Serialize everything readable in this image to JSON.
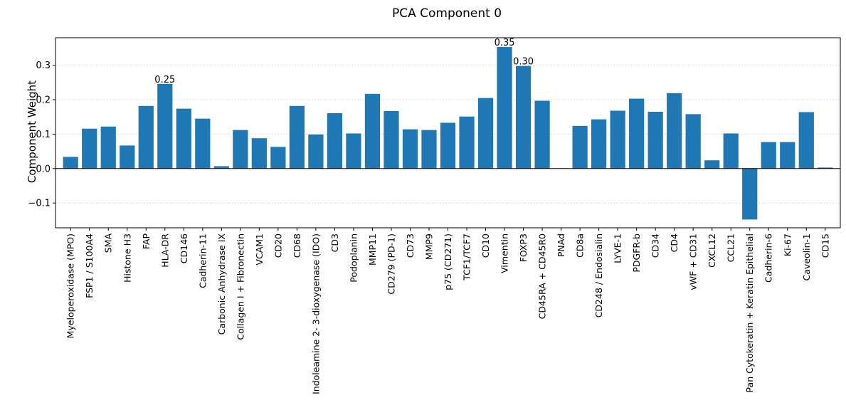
{
  "chart_data": {
    "type": "bar",
    "title": "PCA Component 0",
    "xlabel": "",
    "ylabel": "Component Weight",
    "ylim": [
      -0.172,
      0.38
    ],
    "yticks": [
      -0.1,
      0.0,
      0.1,
      0.2,
      0.3
    ],
    "ytick_labels": [
      "−0.1",
      "0.0",
      "0.1",
      "0.2",
      "0.3"
    ],
    "grid": "y-dotted",
    "bar_color": "#1f77b4",
    "categories": [
      "Myeloperoxidase (MPO)",
      "FSP1 / S100A4",
      "SMA",
      "Histone H3",
      "FAP",
      "HLA-DR",
      "CD146",
      "Cadherin-11",
      "Carbonic Anhydrase IX",
      "Collagen I + Fibronectin",
      "VCAM1",
      "CD20",
      "CD68",
      "Indoleamine 2- 3-dioxygenase (IDO)",
      "CD3",
      "Podoplanin",
      "MMP11",
      "CD279 (PD-1)",
      "CD73",
      "MMP9",
      "p75 (CD271)",
      "TCF1/TCF7",
      "CD10",
      "Vimentin",
      "FOXP3",
      "CD45RA + CD45R0",
      "PNAd",
      "CD8a",
      "CD248 / Endosialin",
      "LYVE-1",
      "PDGFR-b",
      "CD34",
      "CD4",
      "vWF + CD31",
      "CXCL12",
      "CCL21",
      "Pan Cytokeratin + Keratin Epithelial",
      "Cadherin-6",
      "Ki-67",
      "Caveolin-1",
      "CD15"
    ],
    "values": [
      0.034,
      0.116,
      0.122,
      0.067,
      0.182,
      0.246,
      0.174,
      0.145,
      0.007,
      0.112,
      0.088,
      0.063,
      0.182,
      0.099,
      0.161,
      0.102,
      0.217,
      0.167,
      0.114,
      0.112,
      0.133,
      0.151,
      0.205,
      0.353,
      0.298,
      0.197,
      0.0,
      0.124,
      0.143,
      0.168,
      0.203,
      0.165,
      0.219,
      0.158,
      0.024,
      0.102,
      -0.148,
      0.077,
      0.077,
      0.164,
      0.003
    ],
    "data_labels": [
      {
        "index": 5,
        "text": "0.25"
      },
      {
        "index": 23,
        "text": "0.35"
      },
      {
        "index": 24,
        "text": "0.30"
      }
    ]
  }
}
